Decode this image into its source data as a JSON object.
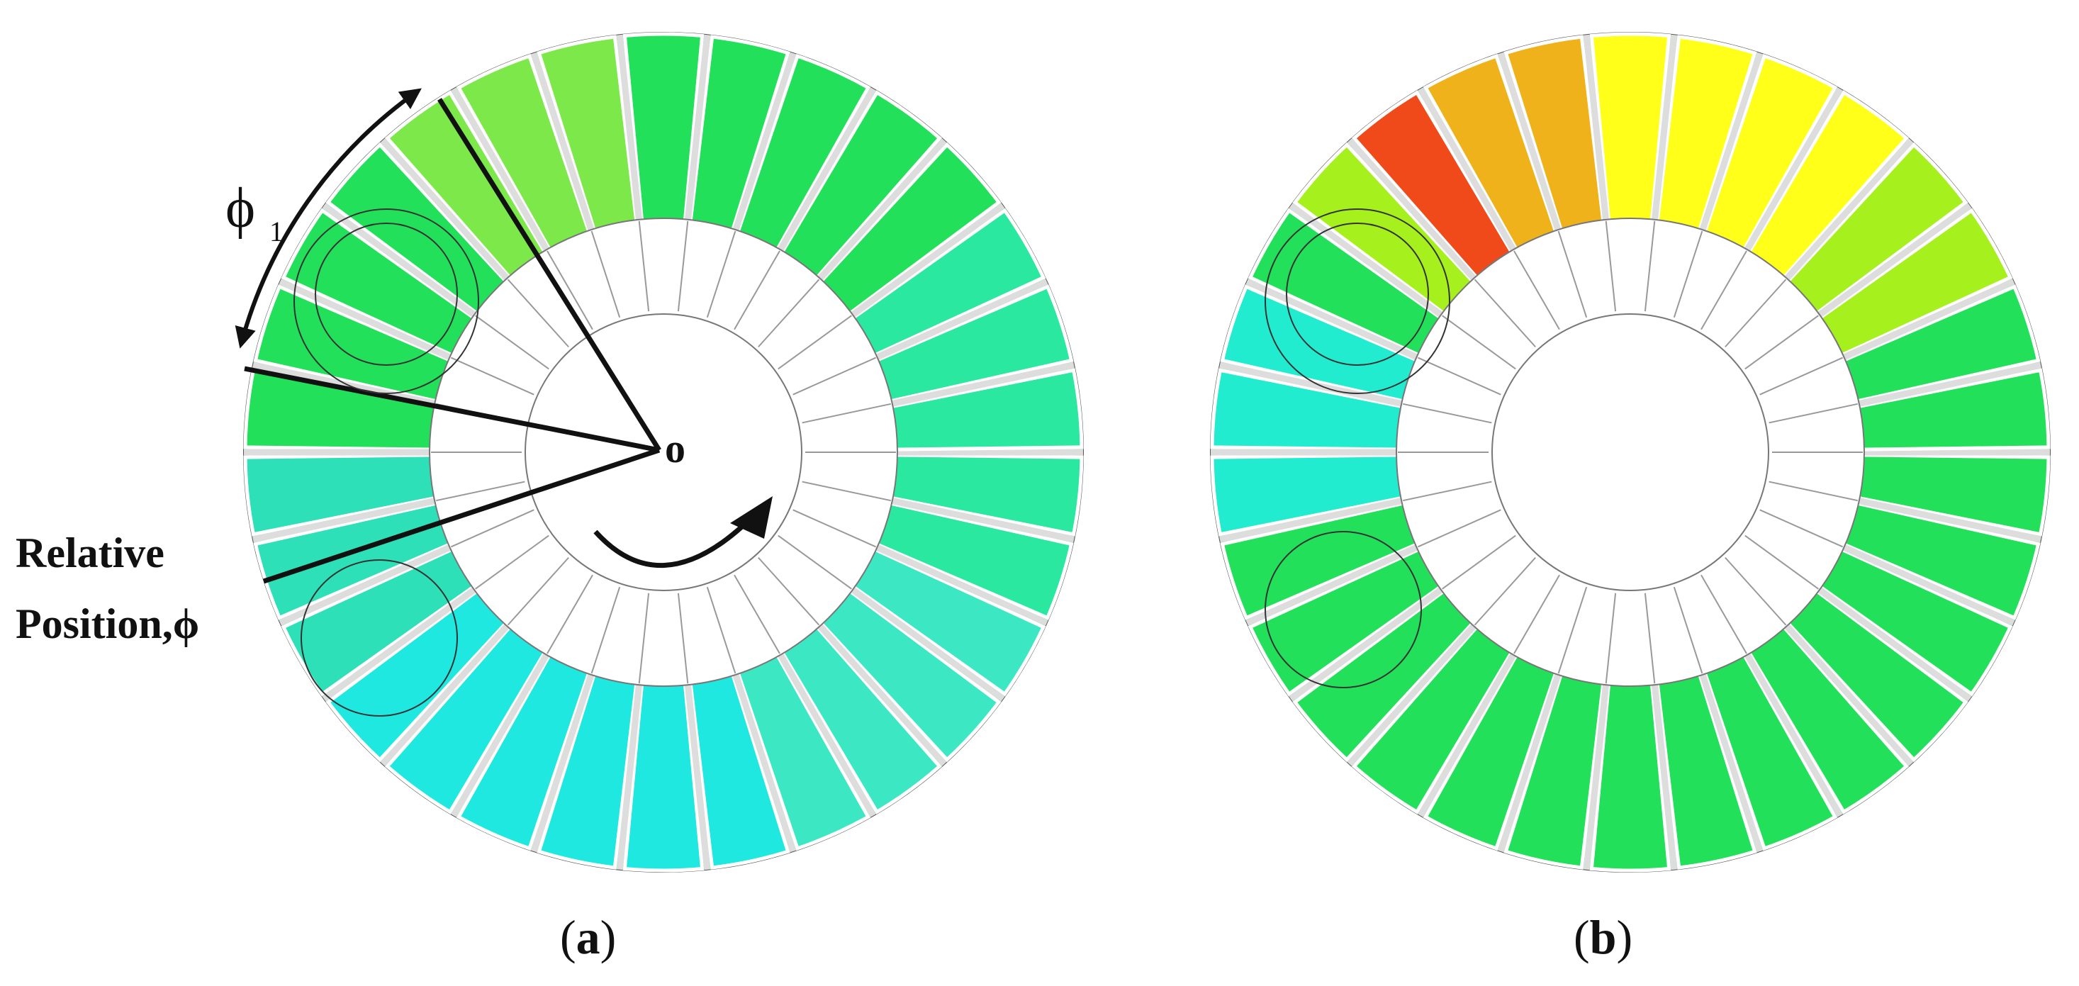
{
  "panels": [
    {
      "id": "a",
      "caption_open": "(",
      "caption_letter": "a",
      "caption_close": ")",
      "annotations": {
        "angle_label": "ϕ",
        "angle_subscript": "1",
        "center_label": "o",
        "relative_label_line1": "Relative",
        "relative_label_line2": "Position,ϕ"
      },
      "colors": {
        "blade_zone_base": "#22e05a",
        "low_pressure": "#1ee8e0",
        "lowest_pressure": "#1a8ae6",
        "high_pressure": "#f4f415"
      }
    },
    {
      "id": "b",
      "caption_open": "(",
      "caption_letter": "b",
      "caption_close": ")",
      "colors": {
        "blade_zone_base": "#22e05a",
        "mid_pressure": "#a6f01e",
        "high_pressure": "#ffff1a",
        "highest_pressure": "#f04a1a",
        "low_pressure": "#22ecd0"
      }
    }
  ]
}
